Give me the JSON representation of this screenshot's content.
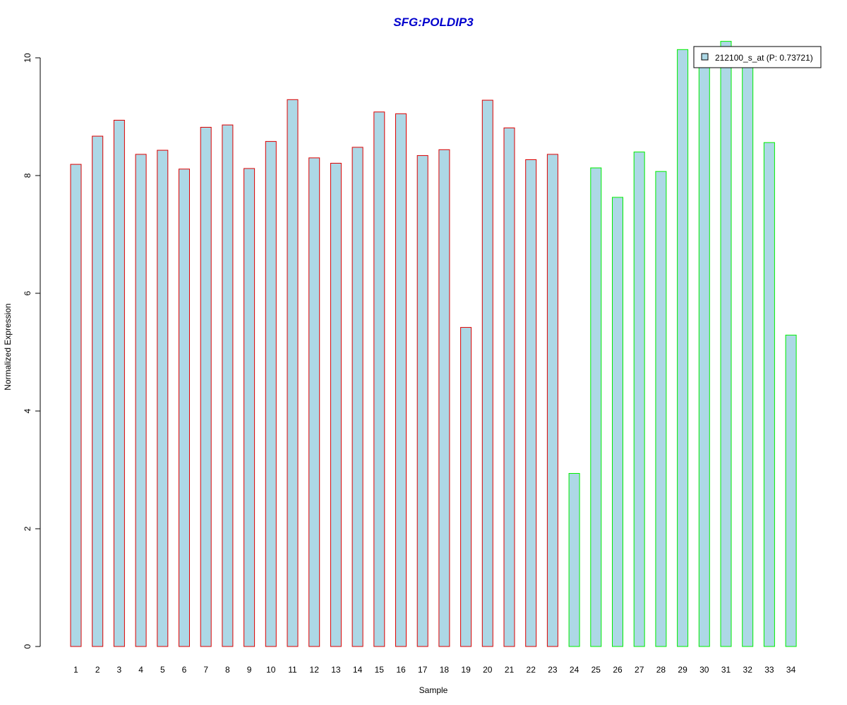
{
  "chart_data": {
    "type": "bar",
    "title": "SFG:POLDIP3",
    "xlabel": "Sample",
    "ylabel": "Normalized Expression",
    "categories": [
      "1",
      "2",
      "3",
      "4",
      "5",
      "6",
      "7",
      "8",
      "9",
      "10",
      "11",
      "12",
      "13",
      "14",
      "15",
      "16",
      "17",
      "18",
      "19",
      "20",
      "21",
      "22",
      "23",
      "24",
      "25",
      "26",
      "27",
      "28",
      "29",
      "30",
      "31",
      "32",
      "33",
      "34"
    ],
    "series": [
      {
        "name": "212100_s_at (P: 0.73721)",
        "values": [
          8.19,
          8.67,
          8.94,
          8.36,
          8.43,
          8.11,
          8.82,
          8.86,
          8.12,
          8.58,
          9.29,
          8.3,
          8.21,
          8.48,
          9.08,
          9.05,
          8.34,
          8.44,
          5.42,
          9.28,
          8.81,
          8.27,
          8.36,
          2.94,
          8.13,
          7.63,
          8.4,
          8.07,
          10.14,
          9.98,
          10.28,
          9.92,
          8.56,
          5.29
        ]
      }
    ],
    "group_border_colors": [
      "#dd0000",
      "#dd0000",
      "#dd0000",
      "#dd0000",
      "#dd0000",
      "#dd0000",
      "#dd0000",
      "#dd0000",
      "#dd0000",
      "#dd0000",
      "#dd0000",
      "#dd0000",
      "#dd0000",
      "#dd0000",
      "#dd0000",
      "#dd0000",
      "#dd0000",
      "#dd0000",
      "#dd0000",
      "#dd0000",
      "#dd0000",
      "#dd0000",
      "#dd0000",
      "#00ee00",
      "#00ee00",
      "#00ee00",
      "#00ee00",
      "#00ee00",
      "#00ee00",
      "#00ee00",
      "#00ee00",
      "#00ee00",
      "#00ee00",
      "#00ee00"
    ],
    "bar_fill": "#add8e6",
    "title_color": "#0000cd",
    "yticks": [
      0,
      2,
      4,
      6,
      8,
      10
    ],
    "ylim": [
      0,
      10.3
    ],
    "grid": false,
    "legend_position": "top-right"
  }
}
